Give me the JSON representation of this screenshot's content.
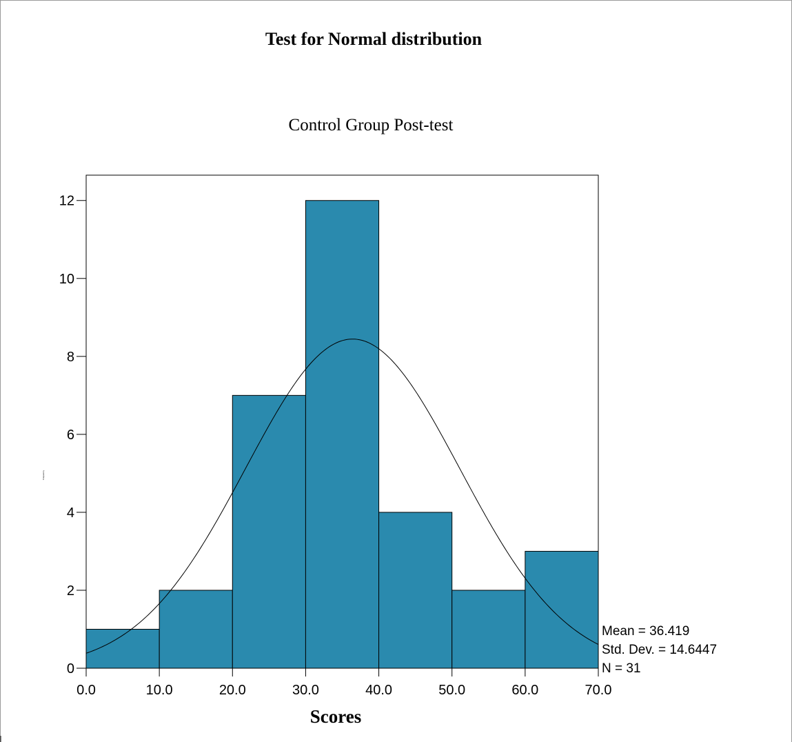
{
  "chart_data": {
    "type": "bar",
    "title": "Test for Normal distribution",
    "subtitle": "Control Group Post-test",
    "xlabel": "Scores",
    "ylabel": "Frequency",
    "bins": [
      {
        "from": 0,
        "to": 10,
        "value": 1
      },
      {
        "from": 10,
        "to": 20,
        "value": 2
      },
      {
        "from": 20,
        "to": 30,
        "value": 7
      },
      {
        "from": 30,
        "to": 40,
        "value": 12
      },
      {
        "from": 40,
        "to": 50,
        "value": 4
      },
      {
        "from": 50,
        "to": 60,
        "value": 2
      },
      {
        "from": 60,
        "to": 70,
        "value": 3
      }
    ],
    "xlim": [
      0,
      70
    ],
    "ylim": [
      0,
      12.65
    ],
    "x_ticks": [
      0,
      10,
      20,
      30,
      40,
      50,
      60,
      70
    ],
    "x_tick_labels": [
      "0.0",
      "10.0",
      "20.0",
      "30.0",
      "40.0",
      "50.0",
      "60.0",
      "70.0"
    ],
    "y_ticks": [
      0,
      2,
      4,
      6,
      8,
      10,
      12
    ],
    "y_tick_labels": [
      "0",
      "2",
      "4",
      "6",
      "8",
      "10",
      "12"
    ],
    "normal_curve": {
      "mean": 36.419,
      "sd": 14.6447,
      "n": 31,
      "bin_width": 10
    },
    "stats": [
      "Mean = 36.419",
      "Std. Dev. = 14.6447",
      "N = 31"
    ],
    "colors": {
      "bar_fill": "#2a8aae",
      "bar_stroke": "#000000",
      "curve": "#000000"
    },
    "grid": false
  }
}
